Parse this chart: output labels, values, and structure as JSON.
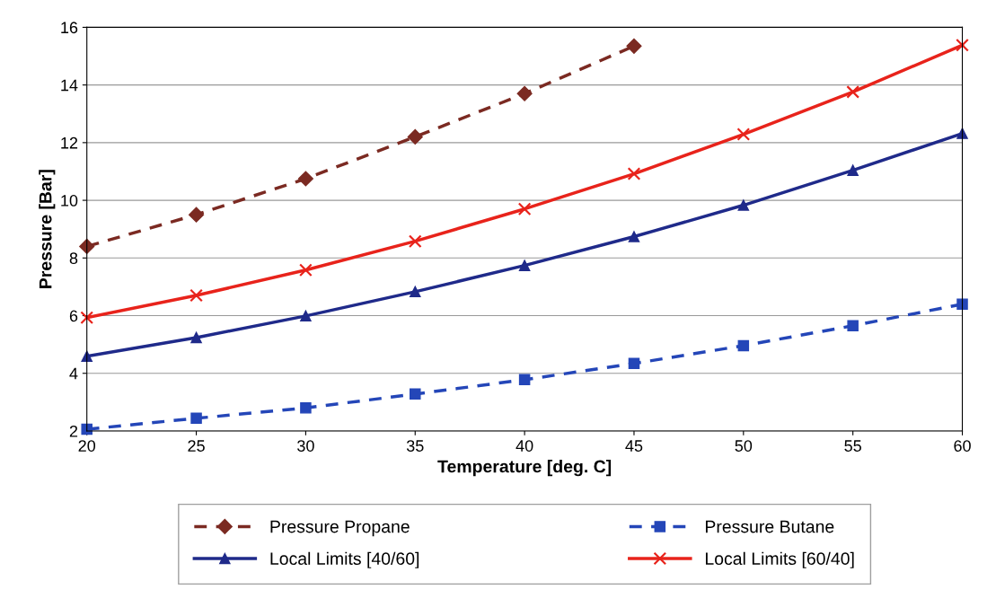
{
  "chart_data": {
    "type": "line",
    "xlabel": "Temperature [deg. C]",
    "ylabel": "Pressure [Bar]",
    "x": [
      20,
      25,
      30,
      35,
      40,
      45,
      50,
      55,
      60
    ],
    "xlim": [
      20,
      60
    ],
    "xticks": [
      20,
      25,
      30,
      35,
      40,
      45,
      50,
      55,
      60
    ],
    "ylim": [
      2,
      16
    ],
    "yticks": [
      2,
      4,
      6,
      8,
      10,
      12,
      14,
      16
    ],
    "grid": "y",
    "legend": "bottom",
    "series": [
      {
        "name": "Pressure Propane",
        "color": "#7b2a22",
        "marker": "diamond",
        "line_style": "dashed",
        "values": [
          8.4,
          9.5,
          10.75,
          12.2,
          13.7,
          15.35,
          null,
          null,
          null
        ]
      },
      {
        "name": "Pressure Butane",
        "color": "#2446b8",
        "marker": "square",
        "line_style": "dashed",
        "values": [
          2.06,
          2.44,
          2.8,
          3.28,
          3.78,
          4.34,
          4.96,
          5.65,
          6.4
        ]
      },
      {
        "name": "Local Limits [40/60]",
        "color": "#1f2a8a",
        "marker": "triangle",
        "line_style": "solid",
        "values": [
          4.59,
          5.24,
          5.99,
          6.83,
          7.74,
          8.74,
          9.83,
          11.04,
          12.32
        ]
      },
      {
        "name": "Local Limits [60/40]",
        "color": "#e8231b",
        "marker": "cross",
        "line_style": "solid",
        "values": [
          5.93,
          6.7,
          7.58,
          8.58,
          9.7,
          10.92,
          12.29,
          13.76,
          15.38
        ]
      }
    ]
  }
}
